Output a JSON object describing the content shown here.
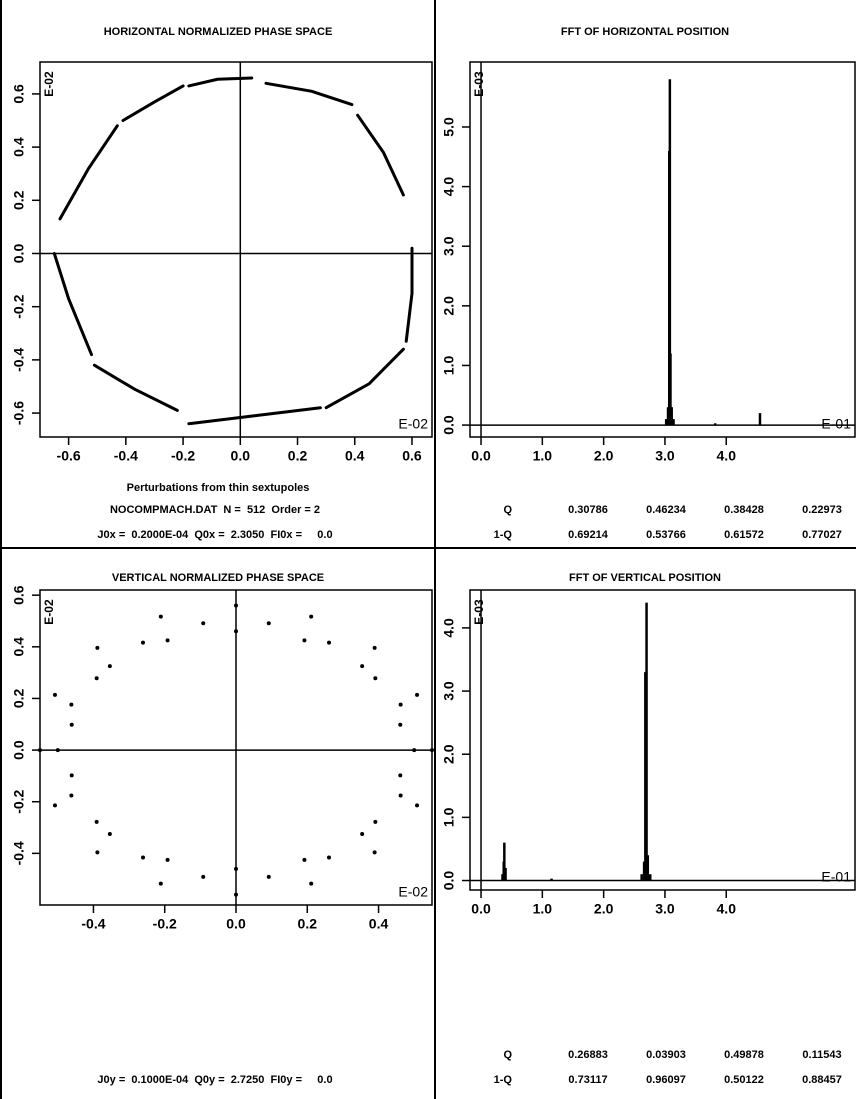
{
  "chart_data": [
    {
      "type": "line",
      "title": "HORIZONTAL NORMALIZED PHASE SPACE",
      "xlabel": "Perturbations from thin sextupoles",
      "x_multiplier": "E-02",
      "y_multiplier": "E-02",
      "info": [
        "NOCOMPMACH.DAT  N =  512  Order = 2",
        "J0x =  0.2000E-04  Q0x =  2.3050  FI0x =     0.0"
      ],
      "color": "#000000",
      "zero_lines": true,
      "xlim": [
        -0.7,
        0.67
      ],
      "ylim": [
        -0.69,
        0.72
      ],
      "xticks": [
        -0.6,
        -0.4,
        -0.2,
        {
          "value": 0,
          "label": "0.0"
        },
        0.2,
        0.4,
        0.6
      ],
      "yticks": [
        -0.6,
        -0.4,
        -0.2,
        {
          "value": 0,
          "label": "0.0"
        },
        0.2,
        0.4,
        0.6
      ],
      "x": [
        -0.18,
        -0.08,
        0.04,
        null,
        0.09,
        0.25,
        0.39,
        null,
        0.41,
        0.5,
        0.57,
        null,
        0.6,
        0.6,
        0.58,
        null,
        0.57,
        0.45,
        0.3,
        null,
        0.28,
        0.05,
        -0.18,
        null,
        -0.22,
        -0.37,
        -0.51,
        null,
        -0.52,
        -0.6,
        -0.65,
        null,
        -0.63,
        -0.53,
        -0.43,
        null,
        -0.41,
        -0.3,
        -0.2
      ],
      "y": [
        0.63,
        0.655,
        0.66,
        null,
        0.64,
        0.61,
        0.56,
        null,
        0.52,
        0.38,
        0.22,
        null,
        0.02,
        -0.15,
        -0.33,
        null,
        -0.36,
        -0.49,
        -0.58,
        null,
        -0.58,
        -0.61,
        -0.64,
        null,
        -0.59,
        -0.51,
        -0.42,
        null,
        -0.38,
        -0.17,
        0.0,
        null,
        0.13,
        0.32,
        0.48,
        null,
        0.5,
        0.57,
        0.63
      ]
    },
    {
      "type": "bar",
      "title": "FFT OF HORIZONTAL POSITION",
      "x_multiplier": "E-01",
      "y_multiplier": "E-03",
      "q_table": [
        [
          "Q",
          "0.30786",
          "0.46234",
          "0.38428",
          "0.22973"
        ],
        [
          "1-Q",
          "0.69214",
          "0.53766",
          "0.61572",
          "0.77027"
        ]
      ],
      "color": "#000000",
      "zero_lines": true,
      "xlim": [
        -0.18,
        6.1
      ],
      "ylim": [
        -0.2,
        6.09
      ],
      "xticks": [
        {
          "value": 0,
          "label": "0.0"
        },
        {
          "value": 1,
          "label": "1.0"
        },
        {
          "value": 2,
          "label": "2.0"
        },
        {
          "value": 3,
          "label": "3.0"
        },
        {
          "value": 4,
          "label": "4.0"
        }
      ],
      "yticks": [
        {
          "value": 0,
          "label": "0.0"
        },
        {
          "value": 1,
          "label": "1.0"
        },
        {
          "value": 2,
          "label": "2.0"
        },
        {
          "value": 3,
          "label": "3.0"
        },
        {
          "value": 4,
          "label": "4.0"
        },
        {
          "value": 5,
          "label": "5.0"
        }
      ],
      "x": [
        3.02,
        3.05,
        3.07,
        3.08,
        3.09,
        3.11,
        3.14,
        3.82,
        4.55
      ],
      "values": [
        0.1,
        0.3,
        4.6,
        5.8,
        1.2,
        0.3,
        0.1,
        0.03,
        0.2
      ]
    },
    {
      "type": "scatter",
      "title": "VERTICAL NORMALIZED PHASE SPACE",
      "x_multiplier": "E-02",
      "y_multiplier": "E-02",
      "info": [
        "J0y =  0.1000E-04  Q0y =  2.7250  FI0y =     0.0"
      ],
      "color": "#000000",
      "zero_lines": true,
      "xlim": [
        -0.55,
        0.55
      ],
      "ylim": [
        -0.6,
        0.62
      ],
      "xticks": [
        -0.4,
        -0.2,
        {
          "value": 0,
          "label": "0.0"
        },
        0.2,
        0.4
      ],
      "yticks": [
        -0.4,
        -0.2,
        {
          "value": 0,
          "label": "0.0"
        },
        0.2,
        0.4,
        0.6
      ],
      "x": [
        0.55,
        0.508,
        0.389,
        0.211,
        0,
        -0.211,
        -0.389,
        -0.508,
        -0.55,
        -0.508,
        -0.389,
        -0.211,
        0,
        0.211,
        0.389,
        0.508,
        0.461,
        0.391,
        0.261,
        0.092,
        -0.092,
        -0.261,
        -0.391,
        -0.461,
        -0.461,
        -0.391,
        -0.261,
        -0.092,
        0.092,
        0.261,
        0.391,
        0.461,
        0.5,
        0.462,
        0.354,
        0.192,
        0,
        -0.192,
        -0.354,
        -0.462,
        -0.5,
        -0.462,
        -0.354,
        -0.192,
        0,
        0.192,
        0.354,
        0.462
      ],
      "y": [
        0,
        0.214,
        0.396,
        0.517,
        0.56,
        0.517,
        0.396,
        0.214,
        0,
        -0.214,
        -0.396,
        -0.517,
        -0.56,
        -0.517,
        -0.396,
        -0.214,
        0.098,
        0.278,
        0.416,
        0.491,
        0.491,
        0.416,
        0.278,
        0.098,
        -0.098,
        -0.278,
        -0.416,
        -0.491,
        -0.491,
        -0.416,
        -0.278,
        -0.098,
        0,
        0.176,
        0.325,
        0.425,
        0.46,
        0.425,
        0.325,
        0.176,
        0,
        -0.176,
        -0.325,
        -0.425,
        -0.46,
        -0.425,
        -0.325,
        -0.176
      ]
    },
    {
      "type": "bar",
      "title": "FFT OF VERTICAL POSITION",
      "x_multiplier": "E-01",
      "y_multiplier": "E-03",
      "q_table": [
        [
          "Q",
          "0.26883",
          "0.03903",
          "0.49878",
          "0.11543"
        ],
        [
          "1-Q",
          "0.73117",
          "0.96097",
          "0.50122",
          "0.88457"
        ]
      ],
      "color": "#000000",
      "zero_lines": true,
      "xlim": [
        -0.18,
        6.1
      ],
      "ylim": [
        -0.15,
        4.6
      ],
      "xticks": [
        {
          "value": 0,
          "label": "0.0"
        },
        {
          "value": 1,
          "label": "1.0"
        },
        {
          "value": 2,
          "label": "2.0"
        },
        {
          "value": 3,
          "label": "3.0"
        },
        {
          "value": 4,
          "label": "4.0"
        }
      ],
      "yticks": [
        {
          "value": 0,
          "label": "0.0"
        },
        {
          "value": 1,
          "label": "1.0"
        },
        {
          "value": 2,
          "label": "2.0"
        },
        {
          "value": 3,
          "label": "3.0"
        },
        {
          "value": 4,
          "label": "4.0"
        }
      ],
      "x": [
        0.35,
        0.37,
        0.38,
        0.4,
        1.15,
        2.62,
        2.66,
        2.68,
        2.7,
        2.72,
        2.76
      ],
      "values": [
        0.1,
        0.3,
        0.6,
        0.2,
        0.03,
        0.1,
        0.3,
        3.3,
        4.4,
        0.4,
        0.1
      ]
    }
  ]
}
